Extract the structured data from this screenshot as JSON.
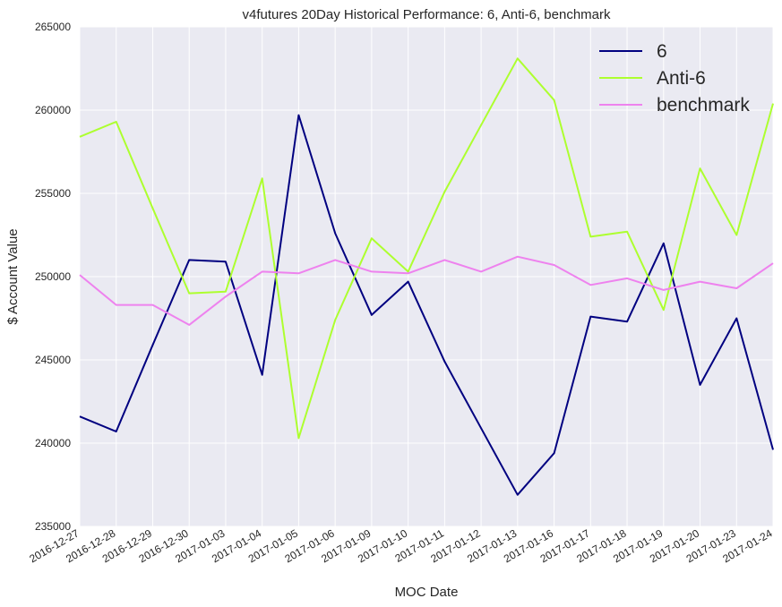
{
  "chart_data": {
    "type": "line",
    "title": "v4futures 20Day Historical Performance: 6, Anti-6, benchmark",
    "xlabel": "MOC Date",
    "ylabel": "$ Account Value",
    "categories": [
      "2016-12-27",
      "2016-12-28",
      "2016-12-29",
      "2016-12-30",
      "2017-01-03",
      "2017-01-04",
      "2017-01-05",
      "2017-01-06",
      "2017-01-09",
      "2017-01-10",
      "2017-01-11",
      "2017-01-12",
      "2017-01-13",
      "2017-01-16",
      "2017-01-17",
      "2017-01-18",
      "2017-01-19",
      "2017-01-20",
      "2017-01-23",
      "2017-01-24"
    ],
    "ylim": [
      235000,
      265000
    ],
    "yticks": [
      235000,
      240000,
      245000,
      250000,
      255000,
      260000,
      265000
    ],
    "ytick_labels": [
      "235000",
      "240000",
      "245000",
      "250000",
      "255000",
      "260000",
      "265000"
    ],
    "grid": true,
    "legend_position": "top-right",
    "series": [
      {
        "name": "6",
        "color": "#000080",
        "values": [
          241600,
          240700,
          245900,
          251000,
          250900,
          244100,
          259700,
          252600,
          247700,
          249700,
          244900,
          240900,
          236900,
          239400,
          247600,
          247300,
          252000,
          243500,
          247500,
          239600
        ]
      },
      {
        "name": "Anti-6",
        "color": "#adff2f",
        "values": [
          258400,
          259300,
          254100,
          249000,
          249100,
          255900,
          240300,
          247400,
          252300,
          250300,
          255100,
          259100,
          263100,
          260600,
          252400,
          252700,
          248000,
          256500,
          252500,
          260400
        ]
      },
      {
        "name": "benchmark",
        "color": "#ee82ee",
        "values": [
          250100,
          248300,
          248300,
          247100,
          248800,
          250300,
          250200,
          251000,
          250300,
          250200,
          251000,
          250300,
          251200,
          250700,
          249500,
          249900,
          249200,
          249700,
          249300,
          250800
        ]
      }
    ]
  },
  "style": {
    "plot_background": "#eaeaf2",
    "grid_color": "#ffffff",
    "text_color": "#262626"
  }
}
